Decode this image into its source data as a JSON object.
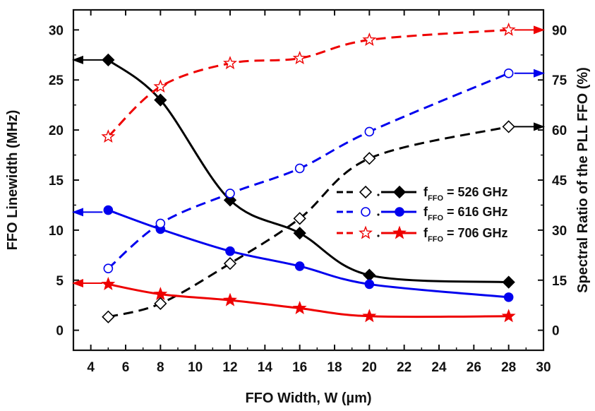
{
  "chart_data": {
    "type": "line",
    "xlabel": "FFO Width, W (µm)",
    "ylabel_left": "FFO Linewidth (MHz)",
    "ylabel_right": "Spectral Ratio of the PLL FFO (%)",
    "xlim": [
      3,
      30
    ],
    "ylim_left": [
      -2,
      32
    ],
    "ylim_right": [
      -6,
      96
    ],
    "xticks": [
      4,
      6,
      8,
      10,
      12,
      14,
      16,
      18,
      20,
      22,
      24,
      26,
      28,
      30
    ],
    "yticks_left": [
      0,
      5,
      10,
      15,
      20,
      25,
      30
    ],
    "yticks_right": [
      0,
      15,
      30,
      45,
      60,
      75,
      90
    ],
    "series": [
      {
        "name": "526 GHz",
        "color": "#000000",
        "marker": "diamond",
        "linewidth": {
          "x": [
            5,
            8,
            12,
            16,
            20,
            28
          ],
          "y": [
            27.0,
            23.0,
            13.0,
            9.7,
            5.5,
            4.8
          ],
          "arrow_y": 27.0
        },
        "spectral_ratio": {
          "x": [
            5,
            8,
            12,
            16,
            20,
            28
          ],
          "y": [
            4,
            8,
            20,
            33.5,
            51.5,
            61
          ],
          "arrow_y": 61
        }
      },
      {
        "name": "616 GHz",
        "color": "#0000ee",
        "marker": "circle",
        "linewidth": {
          "x": [
            5,
            8,
            12,
            16,
            20,
            28
          ],
          "y": [
            12.0,
            10.1,
            7.9,
            6.4,
            4.6,
            3.3
          ],
          "arrow_y": 11.8
        },
        "spectral_ratio": {
          "x": [
            5,
            8,
            12,
            16,
            20,
            28
          ],
          "y": [
            18.5,
            32,
            41,
            48.5,
            59.5,
            77
          ],
          "arrow_y": 77
        }
      },
      {
        "name": "706 GHz",
        "color": "#ee0000",
        "marker": "star",
        "linewidth": {
          "x": [
            5,
            8,
            12,
            16,
            20,
            28
          ],
          "y": [
            4.6,
            3.6,
            3.0,
            2.2,
            1.4,
            1.4
          ],
          "arrow_y": 4.7
        },
        "spectral_ratio": {
          "x": [
            5,
            8,
            12,
            16,
            20,
            28
          ],
          "y": [
            58,
            73,
            80,
            81.5,
            87,
            90
          ],
          "arrow_y": 90
        }
      }
    ],
    "legend": {
      "placement": "center-right",
      "entries": [
        {
          "prefix": "f",
          "sub": "FFO",
          "text": " = 526 GHz",
          "color": "#000000",
          "marker": "diamond"
        },
        {
          "prefix": "f",
          "sub": "FFO",
          "text": " = 616 GHz",
          "color": "#0000ee",
          "marker": "circle"
        },
        {
          "prefix": "f",
          "sub": "FFO",
          "text": " = 706 GHz",
          "color": "#ee0000",
          "marker": "star"
        }
      ]
    },
    "grid": false
  }
}
